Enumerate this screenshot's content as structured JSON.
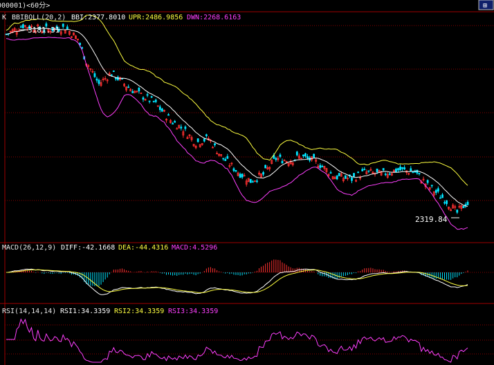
{
  "title": "000001)<60分>",
  "colors": {
    "bg": "#000000",
    "frame": "#a00000",
    "grid": "#8a0000",
    "up": "#ff3030",
    "down": "#00e5ff",
    "text": "#e8e8e8",
    "yellow": "#ffff40",
    "magenta": "#ff40ff",
    "white": "#ffffff"
  },
  "main_panel": {
    "prefix": "K",
    "indicator": "BBIBOLL(20,2)",
    "bbi_label": "BBI:2377.8010",
    "upr_label": "UPR:2486.9856",
    "dwn_label": "DWN:2268.6163",
    "high_label": "3181.31",
    "low_label": "2319.84"
  },
  "macd_panel": {
    "indicator": "MACD(26,12,9)",
    "diff_label": "DIFF:-42.1668",
    "dea_label": "DEA:-44.4316",
    "macd_label": "MACD:4.5296"
  },
  "rsi_panel": {
    "indicator": "RSI(14,14,14)",
    "rsi1_label": "RSI1:34.3359",
    "rsi2_label": "RSI2:34.3359",
    "rsi3_label": "RSI3:34.3359"
  },
  "chart_data": [
    {
      "type": "candlestick",
      "indicator": "BBIBOLL(20,2)",
      "period": "60分",
      "high": 3181.31,
      "low": 2319.84,
      "last": {
        "BBI": 2377.801,
        "UPR": 2486.9856,
        "DWN": 2268.6163
      },
      "close_path": [
        {
          "x": 0,
          "y": 3120
        },
        {
          "x": 8,
          "y": 3160
        },
        {
          "x": 18,
          "y": 3140
        },
        {
          "x": 28,
          "y": 3150
        },
        {
          "x": 34,
          "y": 3100
        },
        {
          "x": 38,
          "y": 3000
        },
        {
          "x": 44,
          "y": 2900
        },
        {
          "x": 50,
          "y": 2950
        },
        {
          "x": 56,
          "y": 2900
        },
        {
          "x": 62,
          "y": 2860
        },
        {
          "x": 70,
          "y": 2820
        },
        {
          "x": 78,
          "y": 2740
        },
        {
          "x": 84,
          "y": 2700
        },
        {
          "x": 90,
          "y": 2640
        },
        {
          "x": 96,
          "y": 2660
        },
        {
          "x": 102,
          "y": 2580
        },
        {
          "x": 110,
          "y": 2510
        },
        {
          "x": 116,
          "y": 2470
        },
        {
          "x": 122,
          "y": 2500
        },
        {
          "x": 128,
          "y": 2570
        },
        {
          "x": 134,
          "y": 2560
        },
        {
          "x": 140,
          "y": 2580
        },
        {
          "x": 148,
          "y": 2550
        },
        {
          "x": 156,
          "y": 2490
        },
        {
          "x": 164,
          "y": 2480
        },
        {
          "x": 170,
          "y": 2510
        },
        {
          "x": 178,
          "y": 2500
        },
        {
          "x": 186,
          "y": 2520
        },
        {
          "x": 194,
          "y": 2510
        },
        {
          "x": 200,
          "y": 2450
        },
        {
          "x": 208,
          "y": 2390
        },
        {
          "x": 214,
          "y": 2330
        },
        {
          "x": 218,
          "y": 2370
        }
      ],
      "series": [
        {
          "name": "BBI"
        },
        {
          "name": "UPR"
        },
        {
          "name": "DWN"
        }
      ]
    },
    {
      "type": "bar",
      "indicator": "MACD(26,12,9)",
      "last": {
        "DIFF": -42.1668,
        "DEA": -44.4316,
        "MACD": 4.5296
      },
      "series": [
        {
          "name": "DIFF"
        },
        {
          "name": "DEA"
        },
        {
          "name": "MACD"
        }
      ]
    },
    {
      "type": "line",
      "indicator": "RSI(14,14,14)",
      "last": {
        "RSI1": 34.3359,
        "RSI2": 34.3359,
        "RSI3": 34.3359
      },
      "series": [
        {
          "name": "RSI1"
        },
        {
          "name": "RSI2"
        },
        {
          "name": "RSI3"
        }
      ]
    }
  ]
}
